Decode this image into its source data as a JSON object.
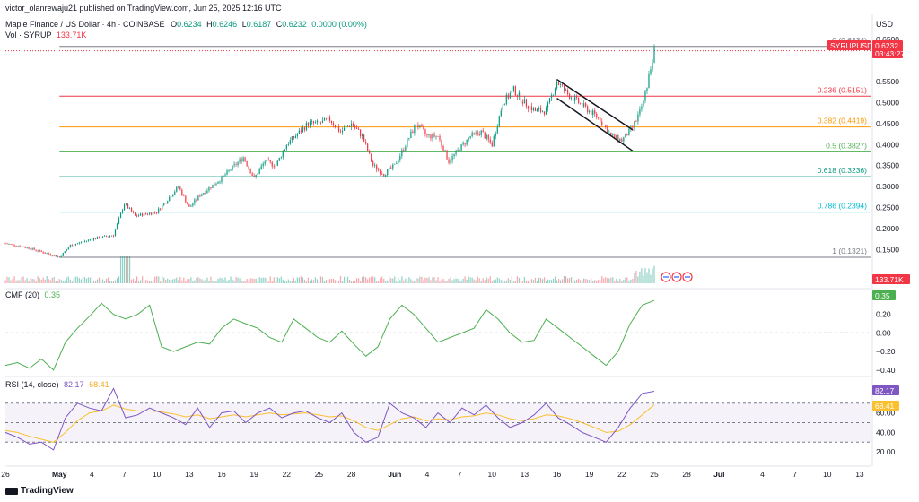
{
  "published": "victor_olanrewaju21 published on TradingView.com, Jun 25, 2025 12:16 UTC",
  "symbol_title": "Maple Finance / US Dollar · 4h · COINBASE",
  "ohlc": {
    "o_label": "O",
    "o": "0.6234",
    "h_label": "H",
    "h": "0.6246",
    "l_label": "L",
    "l": "0.6187",
    "c_label": "C",
    "c": "0.6232",
    "chg": "0.0000 (0.00%)"
  },
  "volume_label": "Vol · SYRUP",
  "volume_value": "133.71K",
  "currency": "USD",
  "price_badge": {
    "symbol": "SYRUPUSD",
    "price": "0.6232",
    "countdown": "03:43:27"
  },
  "volume_badge": "133.71K",
  "cmf": {
    "label": "CMF (20)",
    "value": "0.35",
    "badge": "0.35"
  },
  "rsi": {
    "label": "RSI (14, close)",
    "value": "82.17",
    "ma_value": "68.41"
  },
  "footer_brand": "TradingView",
  "colors": {
    "up": "#089981",
    "down": "#f23645",
    "cmf": "#4caf50",
    "rsi": "#7e57c2",
    "rsi_ma": "#fbc02d",
    "fib_236": "#f23645",
    "fib_382": "#ff9800",
    "fib_5": "#4caf50",
    "fib_618": "#089981",
    "fib_786": "#00bcd4",
    "fib_1": "#787b86"
  },
  "chart_data": [
    {
      "type": "candlestick",
      "name": "price",
      "ylim": [
        0.1,
        0.65
      ],
      "y_ticks": [
        "0.1500",
        "0.2000",
        "0.2500",
        "0.3000",
        "0.3500",
        "0.4000",
        "0.4500",
        "0.5000",
        "0.5500",
        "0.6500"
      ],
      "x_ticks": [
        "26",
        "May",
        "4",
        "7",
        "10",
        "13",
        "16",
        "19",
        "22",
        "25",
        "28",
        "Jun",
        "4",
        "7",
        "10",
        "13",
        "16",
        "19",
        "22",
        "25",
        "28",
        "Jul",
        "4",
        "7",
        "10",
        "13"
      ],
      "fib_levels": [
        {
          "label": "0 (0.6334)",
          "value": 0.6334
        },
        {
          "label": "0.236 (0.5151)",
          "value": 0.5151
        },
        {
          "label": "0.382 (0.4419)",
          "value": 0.4419
        },
        {
          "label": "0.5 (0.3827)",
          "value": 0.3827
        },
        {
          "label": "0.618 (0.3236)",
          "value": 0.3236
        },
        {
          "label": "0.786 (0.2394)",
          "value": 0.2394
        },
        {
          "label": "1 (0.1321)",
          "value": 0.1321
        }
      ],
      "anchors": [
        [
          "Apr 26",
          0.165
        ],
        [
          "Apr 28",
          0.155
        ],
        [
          "Apr 30",
          0.14
        ],
        [
          "May 1",
          0.132
        ],
        [
          "May 2",
          0.16
        ],
        [
          "May 4",
          0.175
        ],
        [
          "May 5",
          0.18
        ],
        [
          "May 6",
          0.185
        ],
        [
          "May 7",
          0.26
        ],
        [
          "May 8",
          0.23
        ],
        [
          "May 10",
          0.24
        ],
        [
          "May 11",
          0.27
        ],
        [
          "May 12",
          0.3
        ],
        [
          "May 13",
          0.25
        ],
        [
          "May 14",
          0.28
        ],
        [
          "May 15",
          0.3
        ],
        [
          "May 16",
          0.32
        ],
        [
          "May 18",
          0.37
        ],
        [
          "May 19",
          0.32
        ],
        [
          "May 20",
          0.36
        ],
        [
          "May 21",
          0.35
        ],
        [
          "May 22",
          0.4
        ],
        [
          "May 24",
          0.45
        ],
        [
          "May 25",
          0.45
        ],
        [
          "May 26",
          0.46
        ],
        [
          "May 27",
          0.43
        ],
        [
          "May 28",
          0.45
        ],
        [
          "May 29",
          0.42
        ],
        [
          "May 30",
          0.35
        ],
        [
          "May 31",
          0.33
        ],
        [
          "Jun 1",
          0.35
        ],
        [
          "Jun 2",
          0.4
        ],
        [
          "Jun 3",
          0.45
        ],
        [
          "Jun 4",
          0.42
        ],
        [
          "Jun 5",
          0.42
        ],
        [
          "Jun 6",
          0.36
        ],
        [
          "Jun 7",
          0.39
        ],
        [
          "Jun 8",
          0.42
        ],
        [
          "Jun 9",
          0.43
        ],
        [
          "Jun 10",
          0.4
        ],
        [
          "Jun 11",
          0.5
        ],
        [
          "Jun 12",
          0.53
        ],
        [
          "Jun 13",
          0.5
        ],
        [
          "Jun 14",
          0.48
        ],
        [
          "Jun 15",
          0.48
        ],
        [
          "Jun 16",
          0.55
        ],
        [
          "Jun 17",
          0.52
        ],
        [
          "Jun 18",
          0.5
        ],
        [
          "Jun 19",
          0.48
        ],
        [
          "Jun 20",
          0.46
        ],
        [
          "Jun 21",
          0.42
        ],
        [
          "Jun 22",
          0.41
        ],
        [
          "Jun 23",
          0.44
        ],
        [
          "Jun 24",
          0.5
        ],
        [
          "Jun 25",
          0.6232
        ]
      ],
      "channel": [
        {
          "from": [
            "Jun 16",
            0.555
          ],
          "to": [
            "Jun 23",
            0.435
          ]
        },
        {
          "from": [
            "Jun 16",
            0.51
          ],
          "to": [
            "Jun 23",
            0.385
          ]
        }
      ]
    },
    {
      "type": "bar",
      "name": "volume",
      "value_label": "133.71K"
    },
    {
      "type": "line",
      "name": "CMF (20)",
      "ylim": [
        -0.45,
        0.4
      ],
      "y_ticks": [
        "0.20",
        "0.00",
        "−0.20",
        "−0.40"
      ],
      "values": [
        -0.35,
        -0.32,
        -0.38,
        -0.28,
        -0.4,
        -0.1,
        0.05,
        0.18,
        0.32,
        0.2,
        0.15,
        0.2,
        0.3,
        -0.15,
        -0.2,
        -0.15,
        -0.1,
        -0.12,
        0.05,
        0.15,
        0.1,
        0.05,
        -0.05,
        -0.1,
        0.15,
        0.05,
        -0.05,
        -0.1,
        0.02,
        -0.12,
        -0.25,
        -0.15,
        0.15,
        0.3,
        0.2,
        0.05,
        -0.1,
        -0.05,
        0.0,
        0.05,
        0.25,
        0.15,
        0.0,
        -0.1,
        -0.08,
        0.15,
        0.05,
        -0.05,
        -0.15,
        -0.25,
        -0.35,
        -0.2,
        0.1,
        0.3,
        0.35
      ]
    },
    {
      "type": "line",
      "name": "RSI (14, close)",
      "ylim": [
        10,
        90
      ],
      "y_ticks": [
        "60.00",
        "40.00",
        "20.00"
      ],
      "bands": [
        70,
        50,
        30
      ],
      "values": [
        40,
        35,
        28,
        30,
        22,
        55,
        70,
        65,
        62,
        85,
        55,
        58,
        65,
        60,
        55,
        48,
        65,
        45,
        60,
        62,
        50,
        60,
        65,
        55,
        60,
        62,
        55,
        50,
        60,
        40,
        30,
        35,
        70,
        60,
        55,
        45,
        60,
        50,
        65,
        58,
        68,
        55,
        45,
        50,
        58,
        70,
        55,
        48,
        40,
        35,
        30,
        45,
        65,
        80,
        82.17
      ],
      "ma_values": [
        42,
        40,
        36,
        33,
        30,
        40,
        52,
        60,
        62,
        68,
        64,
        62,
        62,
        61,
        59,
        56,
        58,
        54,
        56,
        58,
        56,
        58,
        60,
        58,
        59,
        60,
        58,
        56,
        57,
        52,
        45,
        42,
        48,
        54,
        56,
        52,
        54,
        53,
        56,
        57,
        60,
        58,
        54,
        52,
        54,
        58,
        57,
        54,
        50,
        45,
        40,
        41,
        48,
        58,
        68.41
      ]
    }
  ]
}
